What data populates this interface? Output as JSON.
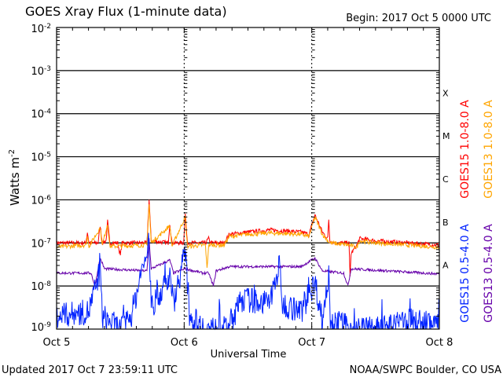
{
  "chart_data": {
    "type": "line",
    "title": "GOES Xray Flux (1-minute data)",
    "begin_label": "Begin:  2017 Oct 5 0000 UTC",
    "xlabel": "Universal Time",
    "ylabel": "Watts m",
    "ylabel_sup": "-2",
    "x_unit": "hours since 2017 Oct 5 0000 UTC",
    "xlim": [
      0,
      72
    ],
    "ylim": [
      1e-09,
      0.01
    ],
    "yscale": "log",
    "x_ticks": [
      {
        "value": 0,
        "label": "Oct 5"
      },
      {
        "value": 24,
        "label": "Oct 6"
      },
      {
        "value": 48,
        "label": "Oct 7"
      },
      {
        "value": 72,
        "label": "Oct 8"
      }
    ],
    "y_ticks": [
      {
        "exp": -2
      },
      {
        "exp": -3
      },
      {
        "exp": -4
      },
      {
        "exp": -5
      },
      {
        "exp": -6
      },
      {
        "exp": -7
      },
      {
        "exp": -8
      },
      {
        "exp": -9
      }
    ],
    "flare_classes": [
      {
        "label": "X",
        "exp": -3.5
      },
      {
        "label": "M",
        "exp": -4.5
      },
      {
        "label": "C",
        "exp": -5.5
      },
      {
        "label": "B",
        "exp": -6.5
      },
      {
        "label": "A",
        "exp": -7.5
      }
    ],
    "series": [
      {
        "name": "GOES15 1.0-8.0 A",
        "color": "#ff0000",
        "noise": 0.05,
        "points": [
          [
            0,
            -7.0
          ],
          [
            5.5,
            -7.0
          ],
          [
            5.8,
            -6.75
          ],
          [
            6.1,
            -7.0
          ],
          [
            7.8,
            -7.0
          ],
          [
            8.2,
            -6.6
          ],
          [
            8.6,
            -7.0
          ],
          [
            9.3,
            -6.95
          ],
          [
            9.6,
            -6.5
          ],
          [
            10,
            -7.0
          ],
          [
            11.5,
            -7.0
          ],
          [
            12,
            -7.3
          ],
          [
            12.3,
            -7.0
          ],
          [
            17,
            -7.0
          ],
          [
            17.4,
            -6.0
          ],
          [
            17.8,
            -6.95
          ],
          [
            21,
            -7.0
          ],
          [
            21.3,
            -6.55
          ],
          [
            21.7,
            -7.0
          ],
          [
            23.9,
            -7.0
          ],
          [
            24.2,
            -6.3
          ],
          [
            24.6,
            -7.0
          ],
          [
            28,
            -7.0
          ],
          [
            28.6,
            -6.9
          ],
          [
            29,
            -7.0
          ],
          [
            31.5,
            -7.0
          ],
          [
            32.5,
            -6.8
          ],
          [
            36,
            -6.75
          ],
          [
            40,
            -6.7
          ],
          [
            43,
            -6.72
          ],
          [
            46,
            -6.75
          ],
          [
            47.5,
            -6.8
          ],
          [
            48.6,
            -6.35
          ],
          [
            50,
            -6.75
          ],
          [
            51,
            -6.9
          ],
          [
            51.2,
            -6.45
          ],
          [
            51.4,
            -6.95
          ],
          [
            52.5,
            -7.0
          ],
          [
            55,
            -7.0
          ],
          [
            55.2,
            -7.8
          ],
          [
            55.4,
            -7.25
          ],
          [
            56.5,
            -7.05
          ],
          [
            57,
            -6.9
          ],
          [
            60,
            -6.95
          ],
          [
            72,
            -7.05
          ]
        ]
      },
      {
        "name": "GOES13 1.0-8.0 A",
        "color": "#ffa500",
        "noise": 0.05,
        "points": [
          [
            0,
            -7.1
          ],
          [
            5.5,
            -7.05
          ],
          [
            5.8,
            -6.85
          ],
          [
            6.1,
            -7.08
          ],
          [
            8.2,
            -6.65
          ],
          [
            8.6,
            -7.05
          ],
          [
            9.6,
            -6.55
          ],
          [
            10,
            -7.08
          ],
          [
            17,
            -7.05
          ],
          [
            17.4,
            -6.1
          ],
          [
            17.8,
            -7.0
          ],
          [
            21.3,
            -6.6
          ],
          [
            21.7,
            -7.08
          ],
          [
            24.2,
            -6.4
          ],
          [
            24.6,
            -7.08
          ],
          [
            28,
            -7.05
          ],
          [
            28.3,
            -7.6
          ],
          [
            28.6,
            -7.05
          ],
          [
            31.5,
            -7.05
          ],
          [
            32.5,
            -6.85
          ],
          [
            36,
            -6.8
          ],
          [
            40,
            -6.77
          ],
          [
            46,
            -6.8
          ],
          [
            47.5,
            -6.85
          ],
          [
            48.6,
            -6.4
          ],
          [
            50,
            -6.8
          ],
          [
            51.4,
            -7.0
          ],
          [
            55,
            -7.05
          ],
          [
            56.5,
            -7.1
          ],
          [
            57,
            -6.95
          ],
          [
            60,
            -7.0
          ],
          [
            72,
            -7.1
          ]
        ]
      },
      {
        "name": "GOES13 0.5-4.0 A",
        "color": "#6600aa",
        "noise": 0.03,
        "points": [
          [
            0,
            -7.7
          ],
          [
            6.5,
            -7.7
          ],
          [
            7.2,
            -8.0
          ],
          [
            8.2,
            -7.35
          ],
          [
            9,
            -7.6
          ],
          [
            17,
            -7.65
          ],
          [
            17.4,
            -6.9
          ],
          [
            17.8,
            -7.6
          ],
          [
            21.3,
            -7.4
          ],
          [
            22,
            -7.7
          ],
          [
            24.2,
            -7.6
          ],
          [
            27.5,
            -7.7
          ],
          [
            28.6,
            -7.7
          ],
          [
            29.5,
            -8.0
          ],
          [
            30,
            -7.65
          ],
          [
            32.5,
            -7.55
          ],
          [
            46,
            -7.55
          ],
          [
            48.6,
            -7.35
          ],
          [
            50,
            -7.65
          ],
          [
            54,
            -7.7
          ],
          [
            54.8,
            -8.0
          ],
          [
            55.4,
            -7.6
          ],
          [
            72,
            -7.72
          ]
        ]
      },
      {
        "name": "GOES15 0.5-4.0 A",
        "color": "#0022ff",
        "noise": 0.3,
        "points": [
          [
            0,
            -8.7
          ],
          [
            6,
            -8.6
          ],
          [
            8.2,
            -7.7
          ],
          [
            8.6,
            -8.7
          ],
          [
            12,
            -9.0
          ],
          [
            14,
            -8.7
          ],
          [
            17.4,
            -7.0
          ],
          [
            17.8,
            -8.5
          ],
          [
            21.3,
            -7.8
          ],
          [
            22,
            -8.4
          ],
          [
            24.2,
            -7.2
          ],
          [
            25,
            -8.7
          ],
          [
            28,
            -9.0
          ],
          [
            32,
            -9.0
          ],
          [
            35,
            -8.3
          ],
          [
            40,
            -8.4
          ],
          [
            42,
            -7.5
          ],
          [
            42.3,
            -8.4
          ],
          [
            46,
            -8.6
          ],
          [
            48.6,
            -7.9
          ],
          [
            50,
            -8.8
          ],
          [
            51.2,
            -7.7
          ],
          [
            51.5,
            -8.8
          ],
          [
            56,
            -9.0
          ],
          [
            62,
            -9.0
          ],
          [
            66,
            -8.8
          ],
          [
            72,
            -8.9
          ]
        ]
      }
    ]
  },
  "footer": {
    "updated": "Updated 2017 Oct  7 23:59:11 UTC",
    "credit": "NOAA/SWPC Boulder, CO USA"
  }
}
